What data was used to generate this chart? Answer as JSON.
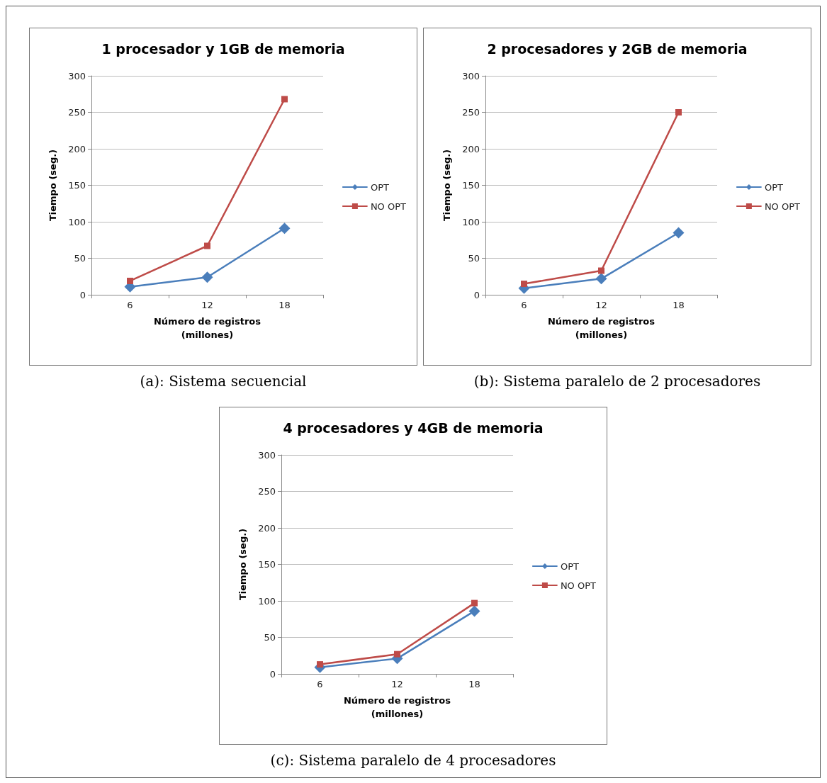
{
  "chart_data": [
    {
      "type": "line",
      "title": "1 procesador y 1GB de memoria",
      "xlabel": "Número de registros\n(millones)",
      "ylabel": "Tiempo (seg.)",
      "categories": [
        "6",
        "12",
        "18"
      ],
      "ylim": [
        0,
        300
      ],
      "yticks": [
        0,
        50,
        100,
        150,
        200,
        250,
        300
      ],
      "grid": "y",
      "legend": "right",
      "annotations": [
        "(a): Sistema secuencial"
      ],
      "series": [
        {
          "name": "OPT",
          "color": "#4a7ebb",
          "marker": "diamond",
          "values": [
            11,
            24,
            91
          ]
        },
        {
          "name": "NO OPT",
          "color": "#be4b48",
          "marker": "square",
          "values": [
            19,
            67,
            268
          ]
        }
      ]
    },
    {
      "type": "line",
      "title": "2 procesadores y 2GB de memoria",
      "xlabel": "Número de registros\n(millones)",
      "ylabel": "Tiempo (seg.)",
      "categories": [
        "6",
        "12",
        "18"
      ],
      "ylim": [
        0,
        300
      ],
      "yticks": [
        0,
        50,
        100,
        150,
        200,
        250,
        300
      ],
      "grid": "y",
      "legend": "right",
      "annotations": [
        "(b): Sistema paralelo de 2 procesadores"
      ],
      "series": [
        {
          "name": "OPT",
          "color": "#4a7ebb",
          "marker": "diamond",
          "values": [
            9,
            22,
            85
          ]
        },
        {
          "name": "NO OPT",
          "color": "#be4b48",
          "marker": "square",
          "values": [
            15,
            33,
            250
          ]
        }
      ]
    },
    {
      "type": "line",
      "title": "4 procesadores y 4GB de memoria",
      "xlabel": "Número de registros\n(millones)",
      "ylabel": "Tiempo (seg.)",
      "categories": [
        "6",
        "12",
        "18"
      ],
      "ylim": [
        0,
        300
      ],
      "yticks": [
        0,
        50,
        100,
        150,
        200,
        250,
        300
      ],
      "grid": "y",
      "legend": "right",
      "annotations": [
        "(c): Sistema paralelo de 4 procesadores"
      ],
      "series": [
        {
          "name": "OPT",
          "color": "#4a7ebb",
          "marker": "diamond",
          "values": [
            9,
            21,
            86
          ]
        },
        {
          "name": "NO OPT",
          "color": "#be4b48",
          "marker": "square",
          "values": [
            13,
            27,
            97
          ]
        }
      ]
    }
  ]
}
